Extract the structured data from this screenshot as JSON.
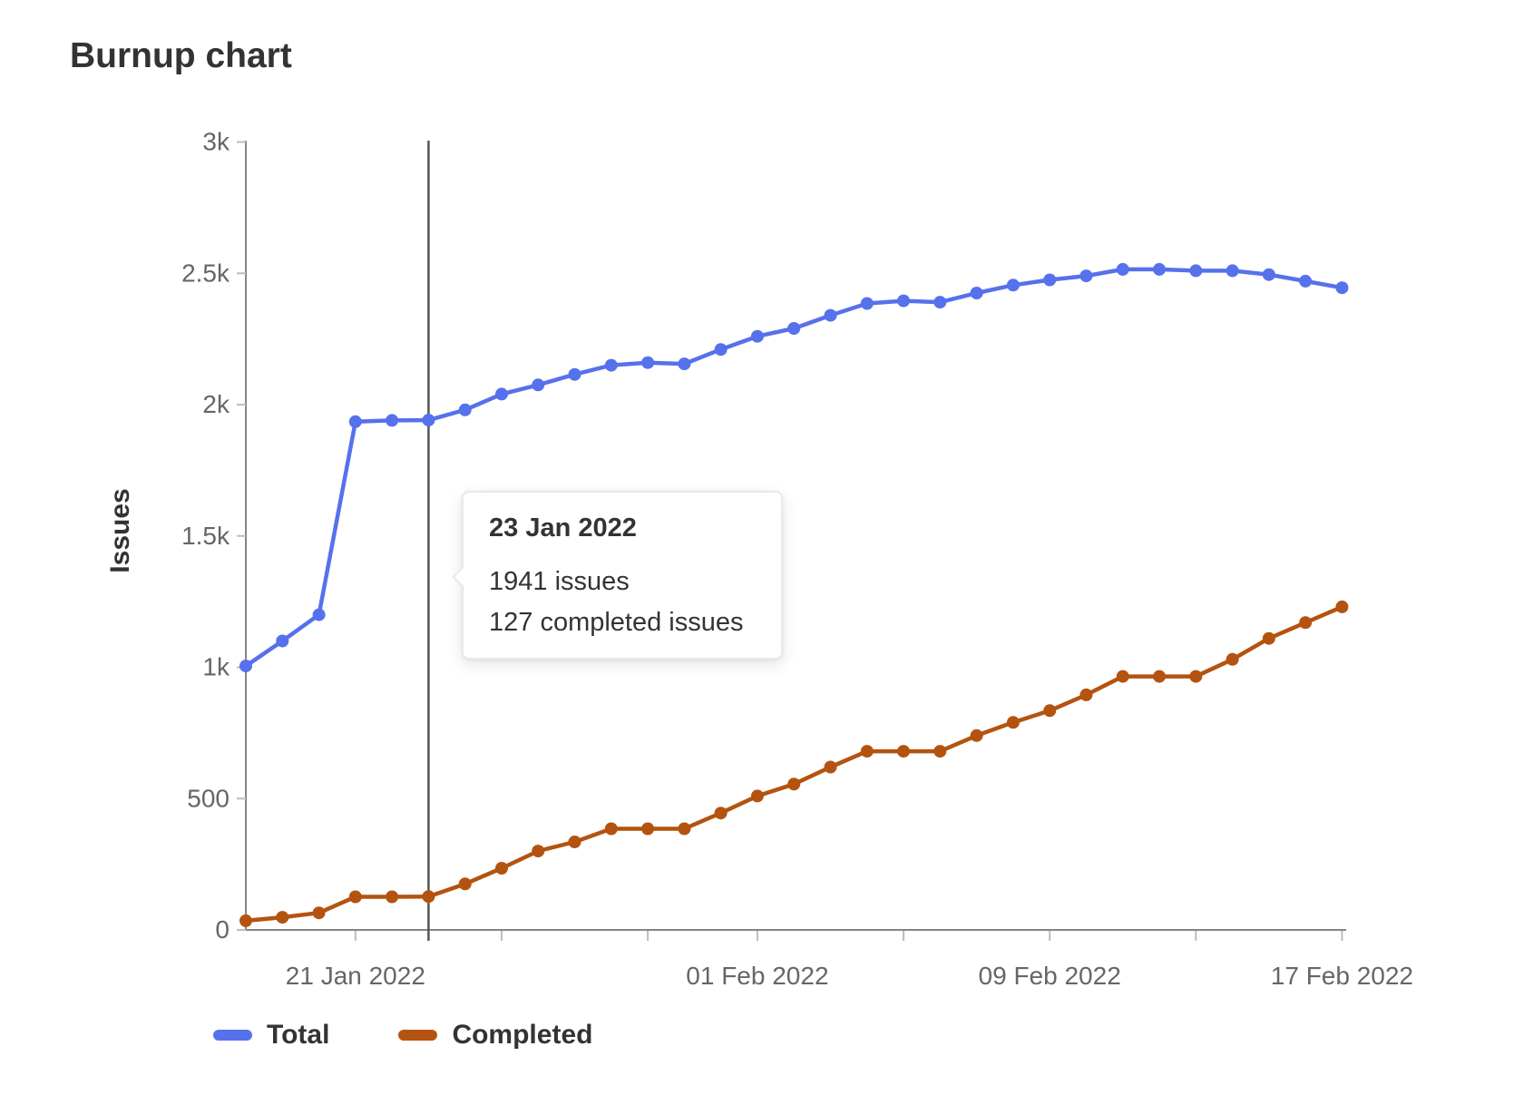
{
  "page": {
    "title": "Burnup chart",
    "background": "#ffffff"
  },
  "chart_data": {
    "type": "line",
    "title": "Burnup chart",
    "xlabel": "",
    "ylabel": "Issues",
    "ylim": [
      0,
      3000
    ],
    "grid": false,
    "legend_position": "bottom-left",
    "y_ticks": [
      0,
      500,
      1000,
      1500,
      2000,
      2500,
      3000
    ],
    "y_tick_labels": [
      "0",
      "500",
      "1k",
      "1.5k",
      "2k",
      "2.5k",
      "3k"
    ],
    "categories": [
      "18 Jan 2022",
      "19 Jan 2022",
      "20 Jan 2022",
      "21 Jan 2022",
      "22 Jan 2022",
      "23 Jan 2022",
      "24 Jan 2022",
      "25 Jan 2022",
      "26 Jan 2022",
      "27 Jan 2022",
      "28 Jan 2022",
      "29 Jan 2022",
      "30 Jan 2022",
      "31 Jan 2022",
      "01 Feb 2022",
      "02 Feb 2022",
      "03 Feb 2022",
      "04 Feb 2022",
      "05 Feb 2022",
      "06 Feb 2022",
      "07 Feb 2022",
      "08 Feb 2022",
      "09 Feb 2022",
      "10 Feb 2022",
      "11 Feb 2022",
      "12 Feb 2022",
      "13 Feb 2022",
      "14 Feb 2022",
      "15 Feb 2022",
      "16 Feb 2022",
      "17 Feb 2022"
    ],
    "x_axis_tick_dates": [
      "21 Jan 2022",
      "25 Jan 2022",
      "29 Jan 2022",
      "01 Feb 2022",
      "05 Feb 2022",
      "09 Feb 2022",
      "13 Feb 2022",
      "17 Feb 2022"
    ],
    "x_tick_labels": [
      "21 Jan 2022",
      "01 Feb 2022",
      "09 Feb 2022",
      "17 Feb 2022"
    ],
    "series": [
      {
        "name": "Total",
        "color": "#5671ec",
        "values": [
          1005,
          1100,
          1200,
          1935,
          1940,
          1941,
          1980,
          2040,
          2075,
          2115,
          2150,
          2160,
          2155,
          2210,
          2260,
          2290,
          2340,
          2385,
          2395,
          2390,
          2425,
          2455,
          2475,
          2490,
          2515,
          2515,
          2510,
          2510,
          2495,
          2470,
          2445
        ]
      },
      {
        "name": "Completed",
        "color": "#b4530f",
        "values": [
          35,
          48,
          65,
          126,
          126,
          127,
          175,
          235,
          300,
          335,
          385,
          385,
          385,
          445,
          510,
          555,
          620,
          680,
          680,
          680,
          740,
          790,
          835,
          895,
          965,
          965,
          965,
          1030,
          1110,
          1170,
          1230
        ]
      }
    ],
    "hover": {
      "date": "23 Jan 2022",
      "total": 1941,
      "completed": 127
    }
  },
  "tooltip": {
    "title": "23 Jan 2022",
    "line1": "1941 issues",
    "line2": "127 completed issues"
  },
  "legend": {
    "items": [
      {
        "label": "Total",
        "color": "#5671ec"
      },
      {
        "label": "Completed",
        "color": "#b4530f"
      }
    ]
  },
  "style": {
    "axis_line_color": "#85848c",
    "axis_tick_color": "#bcbcc2",
    "tick_label_color": "#666666",
    "hover_line_color": "#555555",
    "text_color": "#333333"
  }
}
